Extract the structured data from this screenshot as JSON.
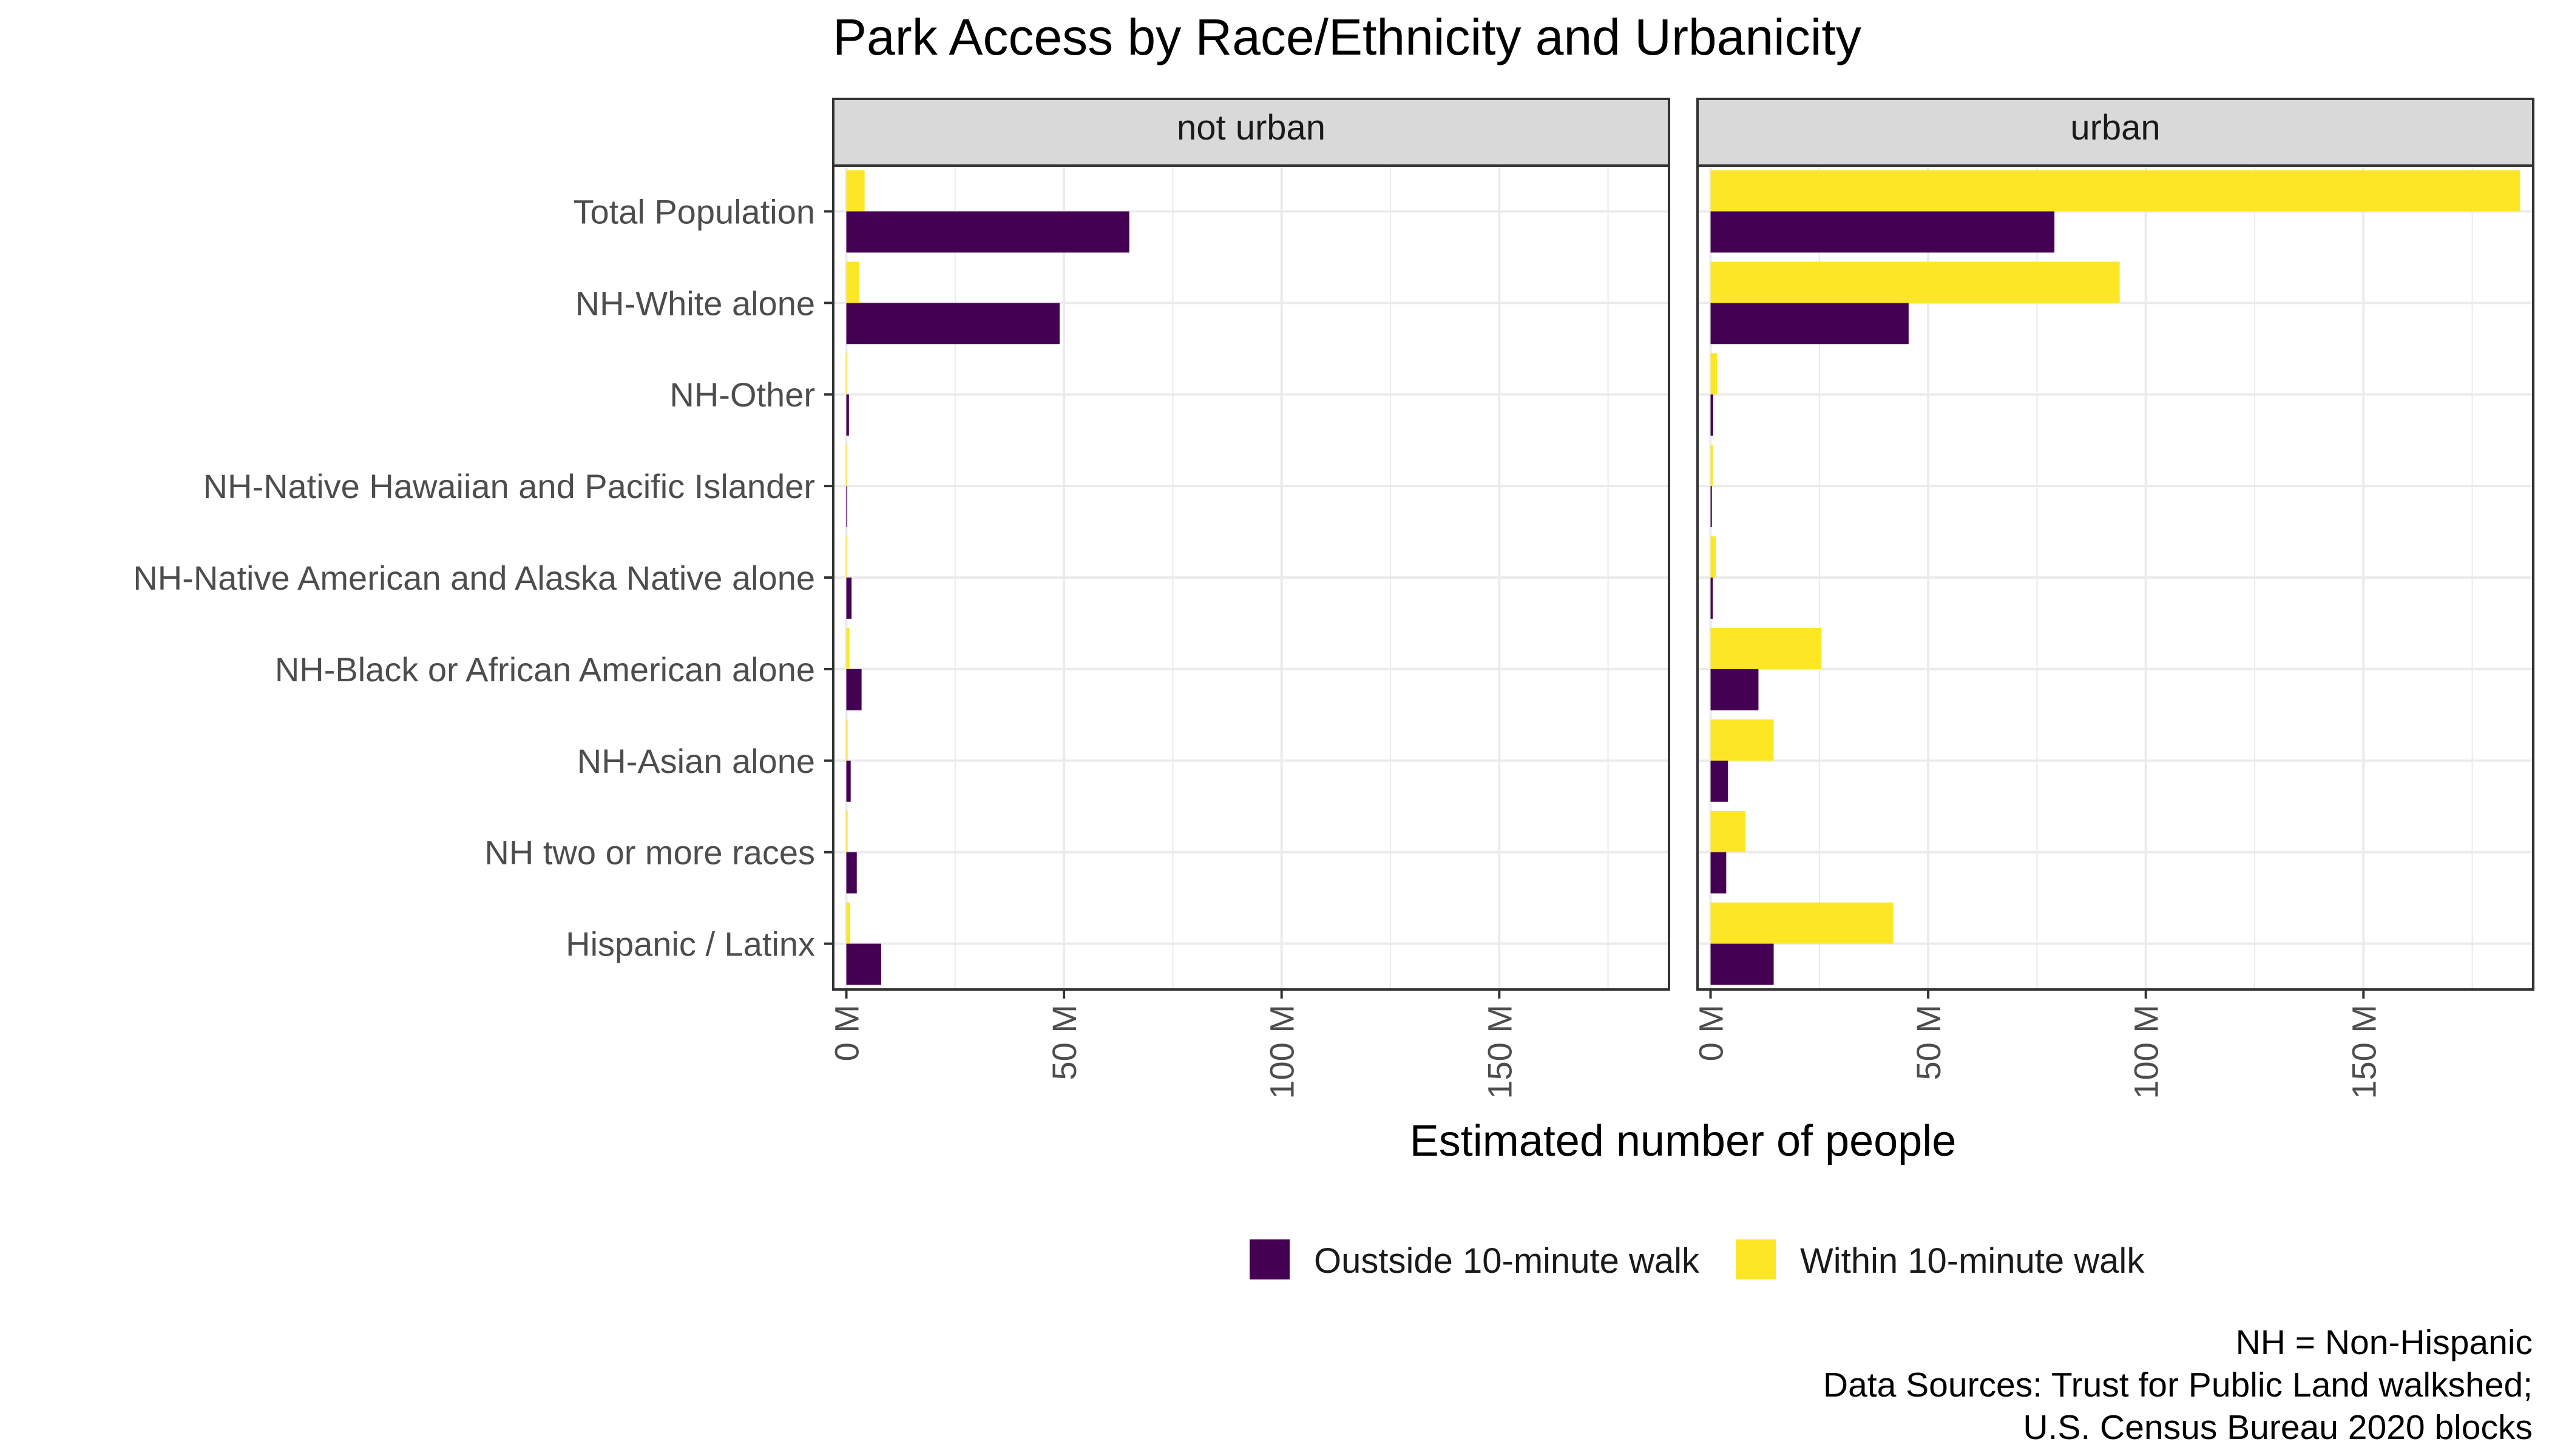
{
  "chart_data": {
    "type": "bar",
    "orientation": "horizontal",
    "title": "Park Access by Race/Ethnicity and Urbanicity",
    "xlabel": "Estimated number of people",
    "categories": [
      "Total Population",
      "NH-White alone",
      "NH-Other",
      "NH-Native Hawaiian and Pacific Islander",
      "NH-Native American and Alaska Native alone",
      "NH-Black or African American alone",
      "NH-Asian alone",
      "NH two or more races",
      "Hispanic / Latinx"
    ],
    "xlim": [
      -3,
      189
    ],
    "xticks": [
      0,
      50,
      100,
      150
    ],
    "xtick_labels": [
      "0 M",
      "50 M",
      "100 M",
      "150 M"
    ],
    "grid": true,
    "legend_position": "bottom",
    "legend_entries": [
      "Oustside 10-minute walk",
      "Within 10-minute walk"
    ],
    "colors": {
      "outside": "#440154",
      "within": "#FDE725"
    },
    "panels": [
      {
        "facet": "not urban",
        "series": [
          {
            "name": "Oustside 10-minute walk",
            "values": [
              65,
              49,
              0.6,
              0.2,
              1.2,
              3.5,
              1.0,
              2.4,
              8.0
            ]
          },
          {
            "name": "Within 10-minute walk",
            "values": [
              4.2,
              3.0,
              0.1,
              0.05,
              0.2,
              0.7,
              0.3,
              0.3,
              0.9
            ]
          }
        ]
      },
      {
        "facet": "urban",
        "series": [
          {
            "name": "Oustside 10-minute walk",
            "values": [
              79,
              45.5,
              0.6,
              0.3,
              0.5,
              11,
              4.0,
              3.6,
              14.5
            ]
          },
          {
            "name": "Within 10-minute walk",
            "values": [
              186,
              94,
              1.5,
              0.5,
              1.2,
              25.5,
              14.5,
              8.0,
              42
            ]
          }
        ]
      }
    ]
  },
  "caption": {
    "line1": "NH = Non-Hispanic",
    "line2": "Data Sources: Trust for Public Land walkshed;",
    "line3": "U.S. Census Bureau 2020 blocks"
  }
}
